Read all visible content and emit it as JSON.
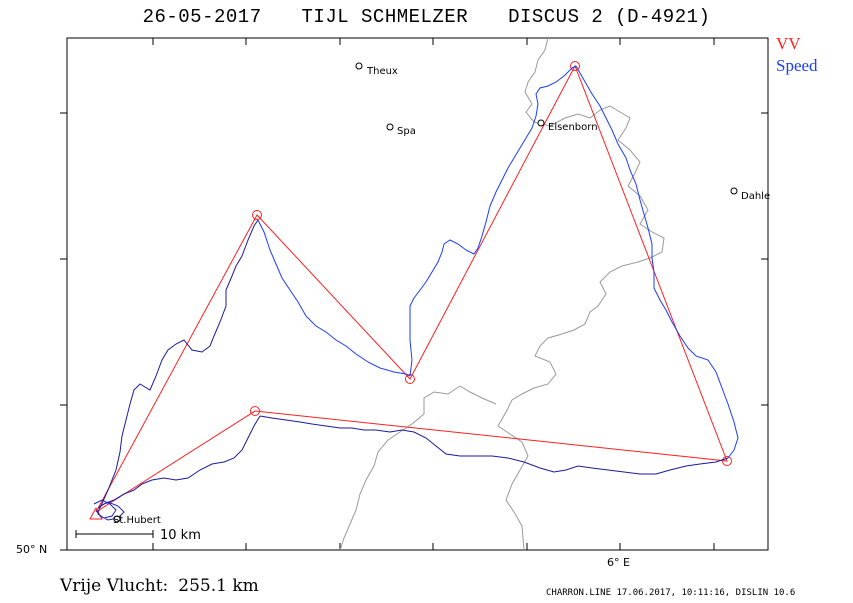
{
  "header": {
    "date": "26-05-2017",
    "pilot": "TIJL SCHMELZER",
    "glider": "DISCUS 2 (D-4921)"
  },
  "legend": {
    "vv_label": "VV",
    "vv_color": "#ff2020",
    "speed_label": "Speed",
    "speed_color": "#1a3cff"
  },
  "map": {
    "places": [
      {
        "id": "theux",
        "name": "Theux"
      },
      {
        "id": "spa",
        "name": "Spa"
      },
      {
        "id": "elsenborn",
        "name": "Elsenborn"
      },
      {
        "id": "dahlem",
        "name": "Dahle"
      },
      {
        "id": "sthubert",
        "name": "St.Hubert"
      }
    ],
    "scale_label": "10 km",
    "lat_label": "50° N",
    "lon_label": "6° E",
    "route_color": "#ff2020",
    "track_color": "#1a1aa0"
  },
  "distance": {
    "label": "Vrije Vlucht:",
    "value": "255.1 km"
  },
  "footer": {
    "text": "CHARRON.LINE 17.06.2017, 10:11:16, DISLIN 10.6"
  }
}
